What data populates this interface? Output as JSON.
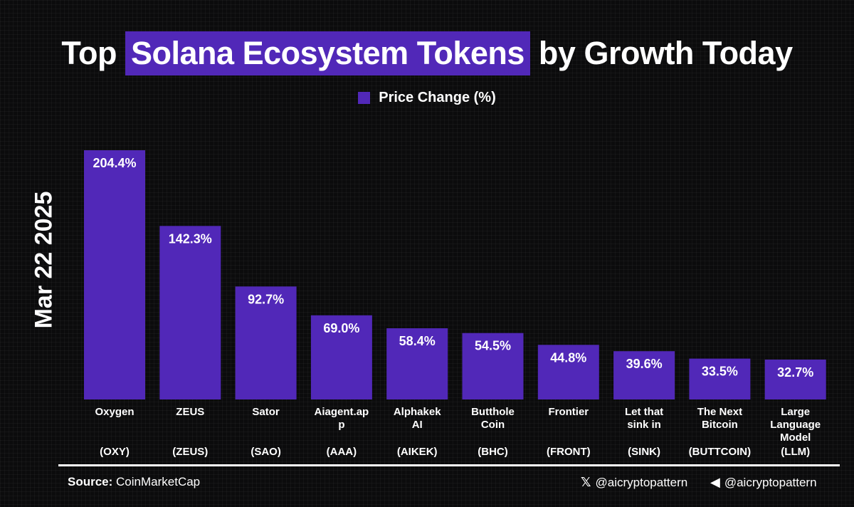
{
  "title": {
    "before": "Top",
    "highlight": "Solana Ecosystem Tokens",
    "after": "by Growth Today"
  },
  "date_label": "Mar 22 2025",
  "footer": {
    "source_label": "Source:",
    "source_value": "CoinMarketCap",
    "x_handle": "@aicryptopattern",
    "telegram_handle": "@aicryptopattern",
    "x_icon": "𝕏",
    "telegram_icon": "◀"
  },
  "colors": {
    "bar": "#5128b8",
    "background": "#0b0b0c",
    "text": "#ffffff"
  },
  "chart_data": {
    "type": "bar",
    "title": "Top Solana Ecosystem Tokens by Growth Today",
    "legend_position": "top-center",
    "ylim": [
      0,
      210
    ],
    "grid": false,
    "categories": [
      {
        "name": [
          "Oxygen"
        ],
        "ticker": "(OXY)"
      },
      {
        "name": [
          "ZEUS"
        ],
        "ticker": "(ZEUS)"
      },
      {
        "name": [
          "Sator"
        ],
        "ticker": "(SAO)"
      },
      {
        "name": [
          "Aiagent.ap",
          "p"
        ],
        "ticker": "(AAA)"
      },
      {
        "name": [
          "Alphakek",
          "AI"
        ],
        "ticker": "(AIKEK)"
      },
      {
        "name": [
          "Butthole",
          "Coin"
        ],
        "ticker": "(BHC)"
      },
      {
        "name": [
          "Frontier"
        ],
        "ticker": "(FRONT)"
      },
      {
        "name": [
          "Let that",
          "sink in"
        ],
        "ticker": "(SINK)"
      },
      {
        "name": [
          "The Next",
          "Bitcoin"
        ],
        "ticker": "(BUTTCOIN)"
      },
      {
        "name": [
          "Large",
          "Language",
          "Model"
        ],
        "ticker": "(LLM)"
      }
    ],
    "series": [
      {
        "name": "Price Change (%)",
        "values": [
          204.4,
          142.3,
          92.7,
          69.0,
          58.4,
          54.5,
          44.8,
          39.6,
          33.5,
          32.7
        ],
        "labels": [
          "204.4%",
          "142.3%",
          "92.7%",
          "69.0%",
          "58.4%",
          "54.5%",
          "44.8%",
          "39.6%",
          "33.5%",
          "32.7%"
        ]
      }
    ]
  }
}
